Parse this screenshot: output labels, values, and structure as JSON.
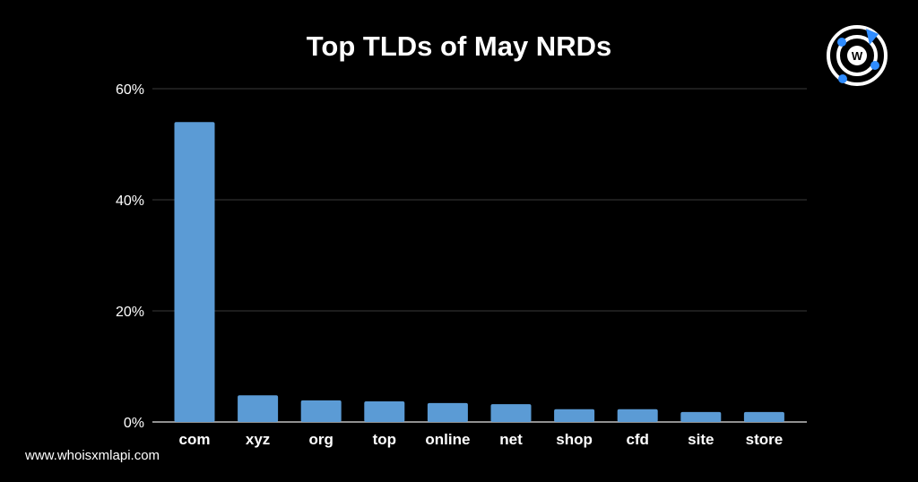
{
  "chart_data": {
    "type": "bar",
    "title": "Top TLDs of May NRDs",
    "categories": [
      "com",
      "xyz",
      "org",
      "top",
      "online",
      "net",
      "shop",
      "cfd",
      "site",
      "store"
    ],
    "values": [
      54.0,
      4.8,
      3.9,
      3.7,
      3.4,
      3.2,
      2.3,
      2.3,
      1.8,
      1.8
    ],
    "yticks": [
      "0%",
      "20%",
      "40%",
      "60%"
    ],
    "ylim": [
      0,
      60
    ],
    "xlabel": "",
    "ylabel": "",
    "grid": true,
    "bar_color": "#5b9bd5",
    "grid_color": "#3a3a3a"
  },
  "footer": {
    "url": "www.whoisxmlapi.com"
  },
  "logo": {
    "icon": "whoisxmlapi-logo-icon",
    "letter": "W",
    "accent": "#2f8cff"
  }
}
